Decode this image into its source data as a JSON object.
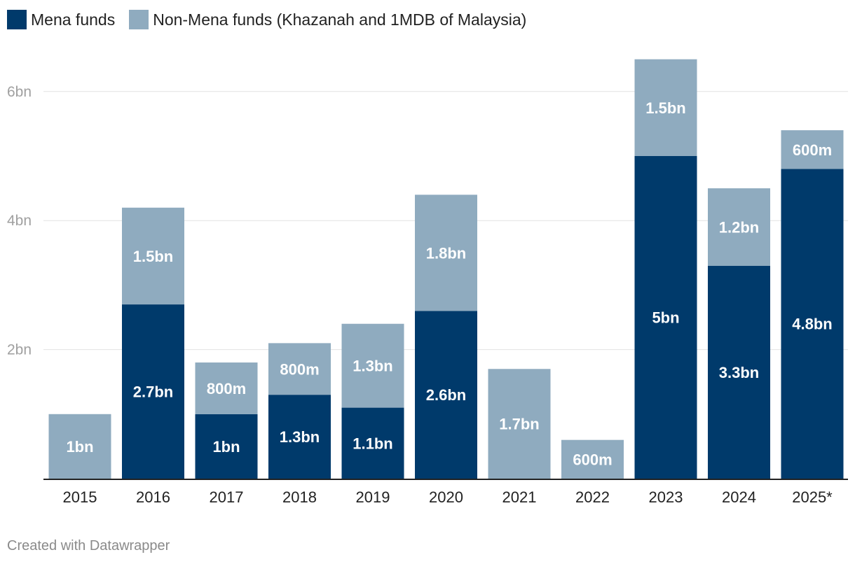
{
  "legend": {
    "items": [
      {
        "label": "Mena funds",
        "color": "#003a6b"
      },
      {
        "label": "Non-Mena funds (Khazanah and 1MDB of Malaysia)",
        "color": "#8fabbf"
      }
    ]
  },
  "footer": {
    "credit": "Created with Datawrapper"
  },
  "chart_data": {
    "type": "bar",
    "stacked": true,
    "title": "",
    "xlabel": "",
    "ylabel": "",
    "ylim": [
      0,
      6.5
    ],
    "yticks": [
      {
        "value": 2,
        "label": "2bn"
      },
      {
        "value": 4,
        "label": "4bn"
      },
      {
        "value": 6,
        "label": "6bn"
      }
    ],
    "categories": [
      "2015",
      "2016",
      "2017",
      "2018",
      "2019",
      "2020",
      "2021",
      "2022",
      "2023",
      "2024",
      "2025*"
    ],
    "series": [
      {
        "name": "Mena funds",
        "color": "#003a6b",
        "values": [
          0,
          2.7,
          1.0,
          1.3,
          1.1,
          2.6,
          0,
          0,
          5.0,
          3.3,
          4.8
        ],
        "labels": [
          "",
          "2.7bn",
          "1bn",
          "1.3bn",
          "1.1bn",
          "2.6bn",
          "",
          "",
          "5bn",
          "3.3bn",
          "4.8bn"
        ]
      },
      {
        "name": "Non-Mena funds (Khazanah and 1MDB of Malaysia)",
        "color": "#8fabbf",
        "values": [
          1.0,
          1.5,
          0.8,
          0.8,
          1.3,
          1.8,
          1.7,
          0.6,
          1.5,
          1.2,
          0.6
        ],
        "labels": [
          "1bn",
          "1.5bn",
          "800m",
          "800m",
          "1.3bn",
          "1.8bn",
          "1.7bn",
          "600m",
          "1.5bn",
          "1.2bn",
          "600m"
        ]
      }
    ]
  }
}
